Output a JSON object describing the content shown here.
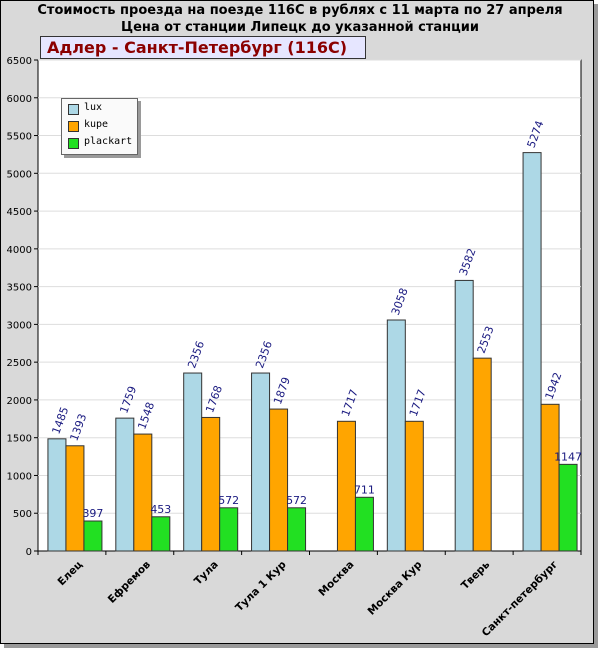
{
  "chart_data": {
    "type": "bar",
    "title": "Стоимость проезда на поезде 116С в рублях с 11 марта по 27 апреля",
    "subtitle": "Цена от станции Липецк до указанной станции",
    "route_label": "Адлер - Санкт-Петербург (116С)",
    "categories": [
      "Елец",
      "Ефремов",
      "Тула",
      "Тула 1 Кур",
      "Москва",
      "Москва Кур",
      "Тверь",
      "Санкт-петербург"
    ],
    "series": [
      {
        "name": "lux",
        "color": "#add8e6",
        "values": [
          1485,
          1759,
          2356,
          2356,
          null,
          3058,
          3582,
          5274
        ]
      },
      {
        "name": "kupe",
        "color": "#ffa500",
        "values": [
          1393,
          1548,
          1768,
          1879,
          1717,
          1717,
          2553,
          1942
        ]
      },
      {
        "name": "plackart",
        "color": "#22e022",
        "values": [
          397,
          453,
          572,
          572,
          711,
          null,
          null,
          1147
        ]
      }
    ],
    "ylim": [
      0,
      6500
    ],
    "yticks": [
      0,
      500,
      1000,
      1500,
      2000,
      2500,
      3000,
      3500,
      4000,
      4500,
      5000,
      5500,
      6000,
      6500
    ],
    "grid": true,
    "legend_position": "top-left"
  }
}
